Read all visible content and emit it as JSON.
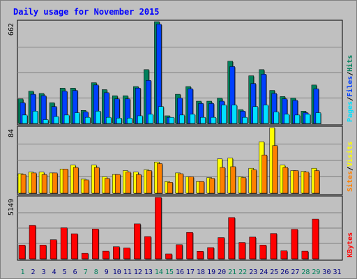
{
  "title": "Daily usage for November 2015",
  "colors": {
    "hits": "#00805c",
    "files": "#0040ff",
    "pages": "#00e0ff",
    "visits": "#ffff00",
    "sites": "#ff8000",
    "kbytes": "#ff0000",
    "panel_bg": "#c0c0c0",
    "grid": "#808080",
    "title_text": "#0000ff",
    "weekend_text": "#00805c",
    "weekday_text": "#000080"
  },
  "chart_data": [
    {
      "type": "bar",
      "name_panel": "hits-files-pages",
      "ymax_label": "662",
      "ylim": [
        0,
        662
      ],
      "legend": [
        "Pages",
        "Files",
        "Hits"
      ],
      "legend_sep": "/",
      "categories": [
        "1",
        "2",
        "3",
        "4",
        "5",
        "6",
        "7",
        "8",
        "9",
        "10",
        "11",
        "12",
        "13",
        "14",
        "15",
        "16",
        "17",
        "18",
        "19",
        "20",
        "21",
        "22",
        "23",
        "24",
        "25",
        "26",
        "27",
        "28",
        "29",
        "30",
        "31"
      ],
      "series": [
        {
          "name": "Hits",
          "values": [
            160,
            210,
            195,
            135,
            230,
            230,
            85,
            265,
            220,
            180,
            180,
            240,
            350,
            662,
            50,
            190,
            240,
            145,
            145,
            165,
            405,
            90,
            310,
            350,
            215,
            175,
            165,
            80,
            250,
            0,
            0
          ]
        },
        {
          "name": "Files",
          "values": [
            135,
            190,
            180,
            110,
            210,
            215,
            75,
            250,
            200,
            160,
            160,
            230,
            280,
            645,
            40,
            165,
            225,
            130,
            130,
            145,
            370,
            80,
            260,
            320,
            195,
            160,
            150,
            70,
            225,
            0,
            0
          ]
        },
        {
          "name": "Pages",
          "values": [
            55,
            80,
            25,
            45,
            55,
            70,
            40,
            80,
            40,
            35,
            35,
            50,
            60,
            110,
            40,
            55,
            60,
            40,
            40,
            120,
            120,
            40,
            110,
            120,
            75,
            60,
            55,
            60,
            70,
            0,
            0
          ]
        }
      ]
    },
    {
      "type": "bar",
      "name_panel": "visits-sites",
      "ymax_label": "84",
      "ylim": [
        0,
        84
      ],
      "legend": [
        "Sites",
        "Visits"
      ],
      "legend_sep": "/",
      "categories": [
        "1",
        "2",
        "3",
        "4",
        "5",
        "6",
        "7",
        "8",
        "9",
        "10",
        "11",
        "12",
        "13",
        "14",
        "15",
        "16",
        "17",
        "18",
        "19",
        "20",
        "21",
        "22",
        "23",
        "24",
        "25",
        "26",
        "27",
        "28",
        "29",
        "30",
        "31"
      ],
      "series": [
        {
          "name": "Visits",
          "values": [
            25,
            27,
            27,
            26,
            31,
            36,
            18,
            36,
            21,
            24,
            29,
            27,
            30,
            40,
            15,
            26,
            21,
            15,
            20,
            44,
            45,
            21,
            32,
            66,
            84,
            36,
            29,
            28,
            32,
            0,
            0
          ]
        },
        {
          "name": "Sites",
          "values": [
            24,
            26,
            24,
            26,
            31,
            33,
            17,
            33,
            19,
            24,
            27,
            24,
            29,
            38,
            14,
            25,
            21,
            15,
            19,
            33,
            34,
            20,
            30,
            49,
            61,
            33,
            29,
            27,
            29,
            0,
            0
          ]
        }
      ]
    },
    {
      "type": "bar",
      "name_panel": "kbytes",
      "ymax_label": "5149",
      "ylim": [
        0,
        5149
      ],
      "legend": [
        "KBytes"
      ],
      "categories": [
        "1",
        "2",
        "3",
        "4",
        "5",
        "6",
        "7",
        "8",
        "9",
        "10",
        "11",
        "12",
        "13",
        "14",
        "15",
        "16",
        "17",
        "18",
        "19",
        "20",
        "21",
        "22",
        "23",
        "24",
        "25",
        "26",
        "27",
        "28",
        "29",
        "30",
        "31"
      ],
      "series": [
        {
          "name": "KBytes",
          "values": [
            1150,
            2800,
            1150,
            1600,
            2600,
            2100,
            460,
            2500,
            640,
            1010,
            910,
            2930,
            1860,
            5149,
            410,
            1180,
            2210,
            630,
            940,
            1780,
            3460,
            1370,
            1820,
            1150,
            2120,
            670,
            2470,
            640,
            3330,
            0,
            0
          ]
        }
      ]
    }
  ],
  "days": [
    "1",
    "2",
    "3",
    "4",
    "5",
    "6",
    "7",
    "8",
    "9",
    "10",
    "11",
    "12",
    "13",
    "14",
    "15",
    "16",
    "17",
    "18",
    "19",
    "20",
    "21",
    "22",
    "23",
    "24",
    "25",
    "26",
    "27",
    "28",
    "29",
    "30",
    "31"
  ],
  "weekend_days": [
    "1",
    "7",
    "8",
    "14",
    "15",
    "21",
    "22",
    "28",
    "29"
  ]
}
